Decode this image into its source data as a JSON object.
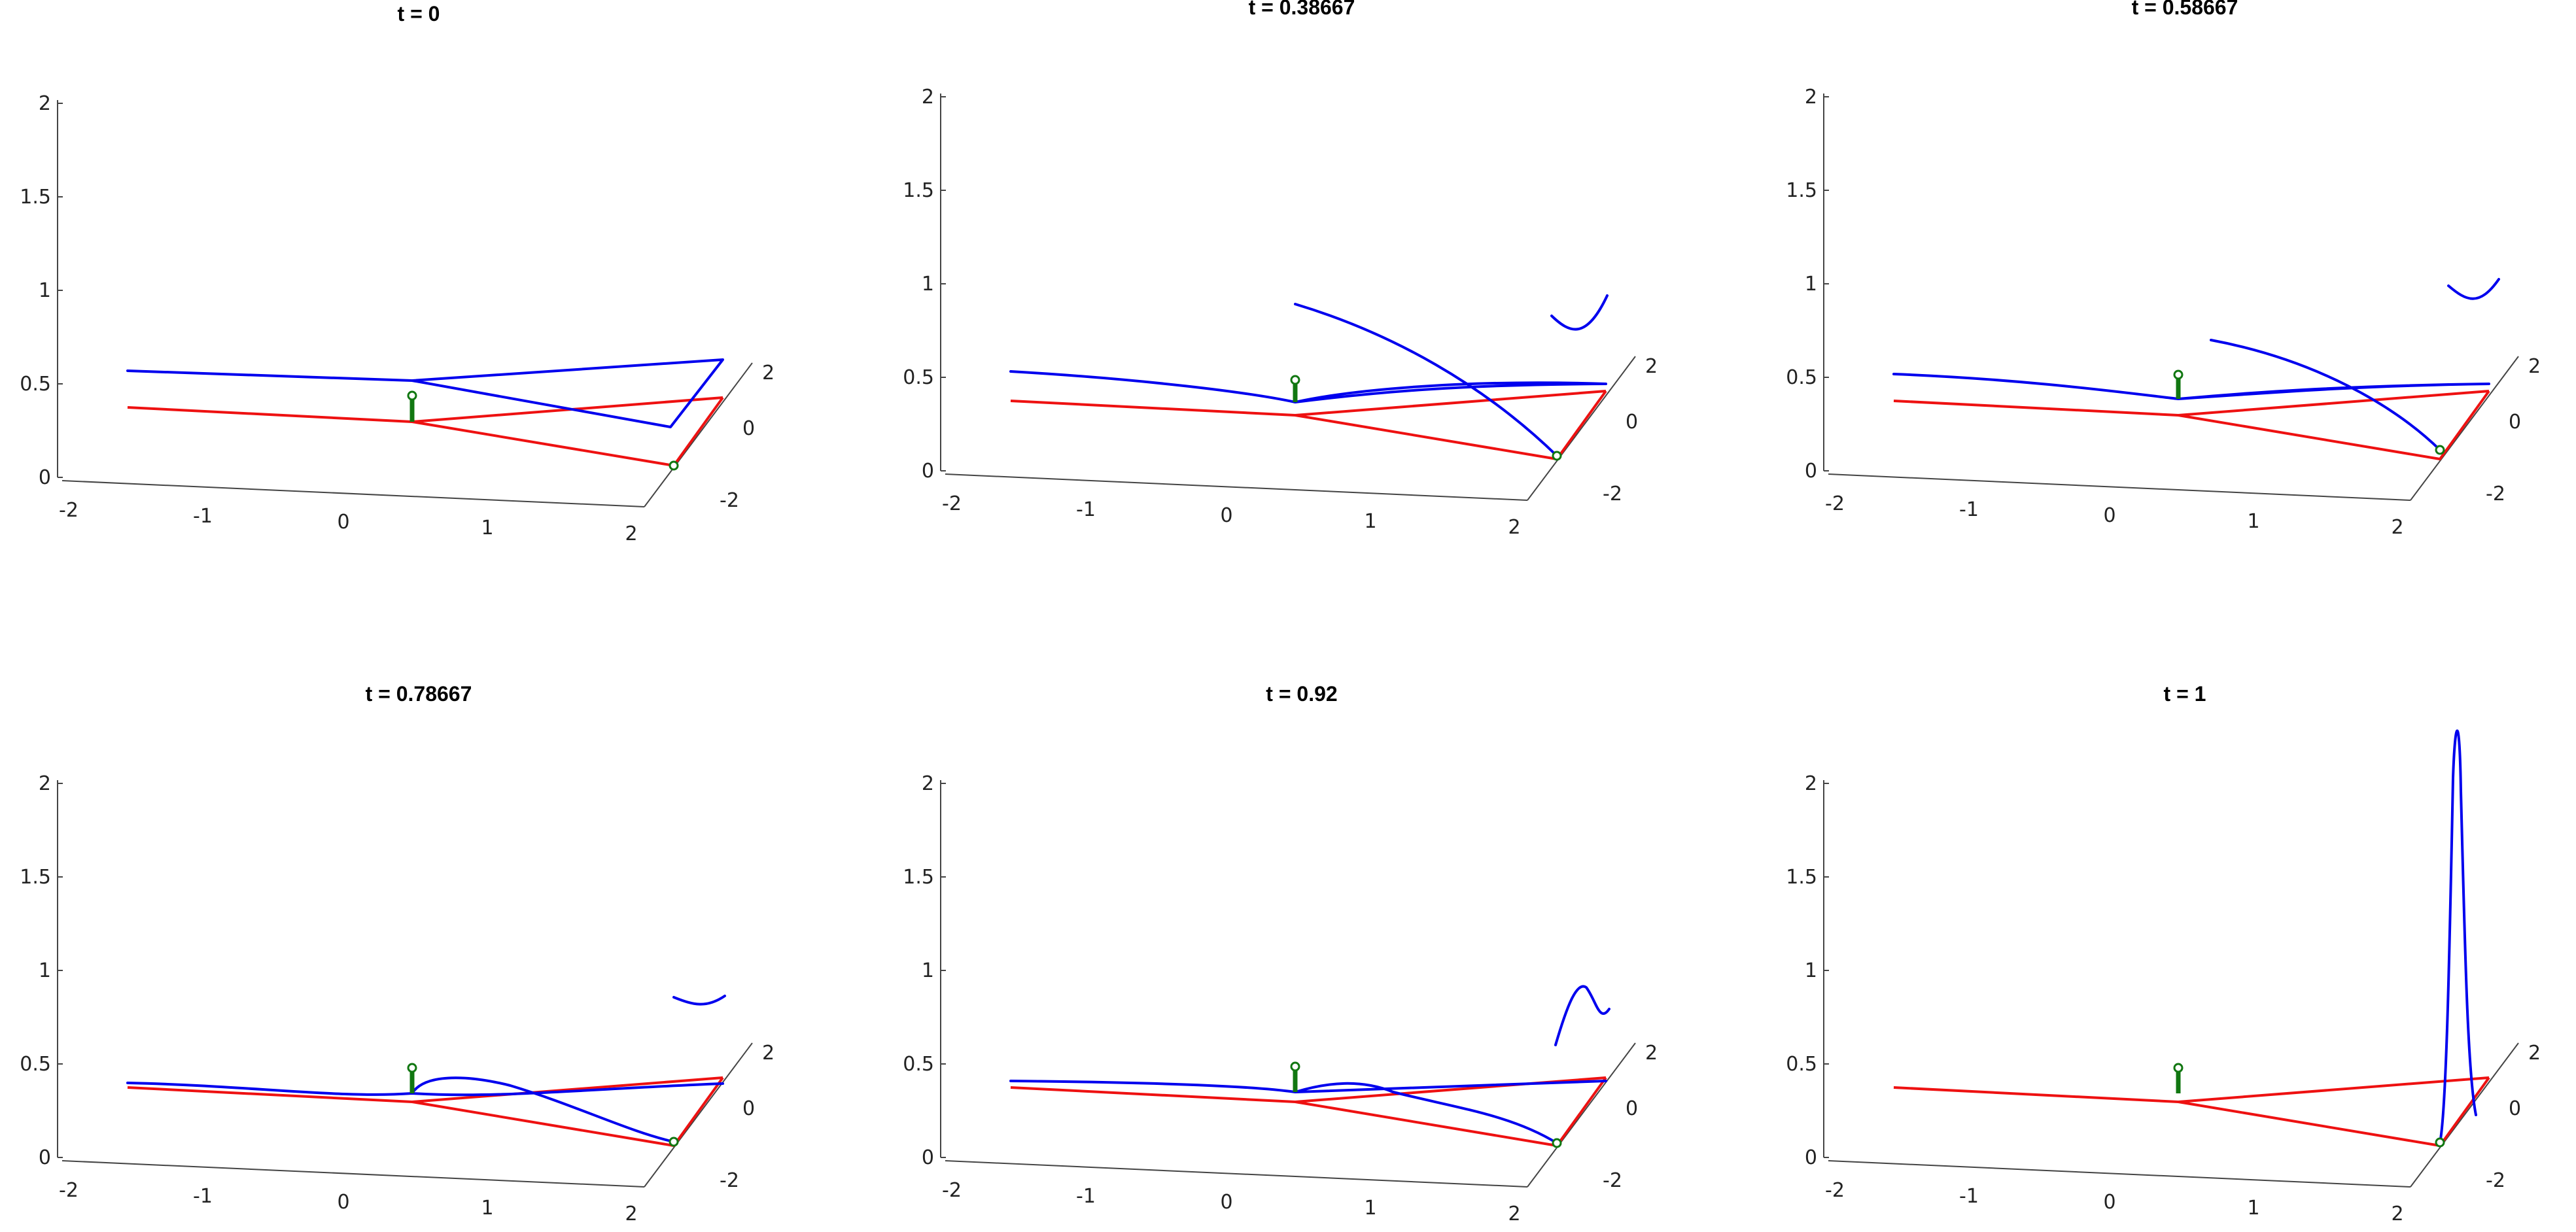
{
  "chart_data": [
    {
      "type": "line",
      "title": "t = 0"
    },
    {
      "type": "line",
      "title": "t = 0.38667"
    },
    {
      "type": "line",
      "title": "t = 0.58667"
    },
    {
      "type": "line",
      "title": "t = 0.78667"
    },
    {
      "type": "line",
      "title": "t = 0.92"
    },
    {
      "type": "line",
      "title": "t = 1"
    }
  ],
  "axes": {
    "z_ticks": [
      "0",
      "0.5",
      "1",
      "1.5",
      "2"
    ],
    "x_ticks": [
      "-2",
      "-1",
      "0",
      "1",
      "2"
    ],
    "y_ticks": [
      "-2",
      "0",
      "2"
    ],
    "zlim": [
      0,
      2
    ],
    "xlim": [
      -2,
      2
    ],
    "ylim": [
      -2,
      2
    ]
  },
  "colors": {
    "blue_curve": "#0000ee",
    "red_frame": "#ee1111",
    "green_post": "#117711"
  }
}
